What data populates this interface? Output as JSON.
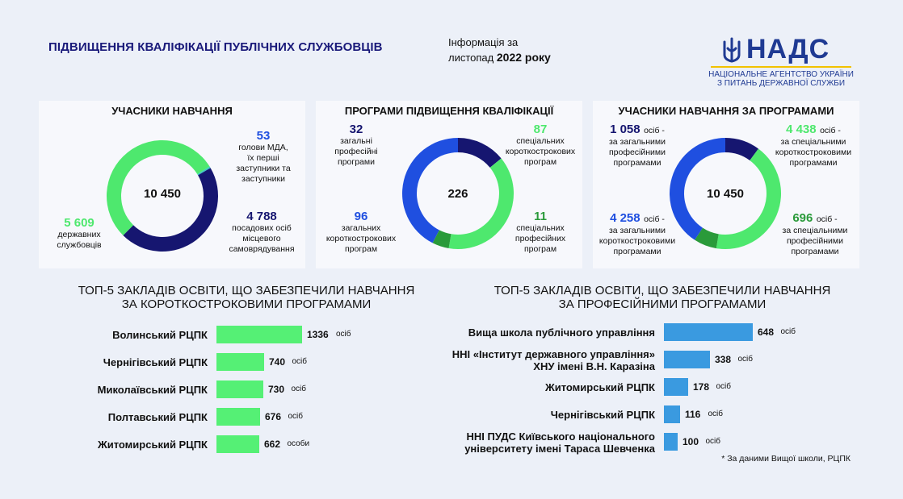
{
  "header": {
    "title": "ПІДВИЩЕННЯ КВАЛІФІКАЦІЇ ПУБЛІЧНИХ СЛУЖБОВЦІВ",
    "info_line1": "Інформація за",
    "info_line2a": "листопад",
    "info_line2b": "2022 року",
    "logo_text": "НАДС",
    "logo_sub1": "НАЦІОНАЛЬНЕ АГЕНТСТВО УКРАЇНИ",
    "logo_sub2": "З ПИТАНЬ ДЕРЖАВНОЇ СЛУЖБИ"
  },
  "colors": {
    "green": "#4ee86e",
    "navy": "#161670",
    "blue": "#1f4fe0",
    "dark_green": "#2a9a3a",
    "teal": "#3ec9c2",
    "bar_green": "#55f075",
    "bar_blue": "#3a9ae0"
  },
  "panel1": {
    "title": "УЧАСНИКИ НАВЧАННЯ",
    "total": "10 450",
    "items": [
      {
        "value": "53",
        "desc": [
          "голови МДА,",
          "їх перші",
          "заступники та",
          "заступники"
        ]
      },
      {
        "value": "4 788",
        "desc": [
          "посадових осіб",
          "місцевого",
          "самоврядування"
        ]
      },
      {
        "value": "5 609",
        "desc": [
          "державних",
          "службовців"
        ]
      }
    ]
  },
  "panel2": {
    "title": "ПРОГРАМИ ПІДВИЩЕННЯ КВАЛІФІКАЦІЇ",
    "total": "226",
    "items": [
      {
        "value": "32",
        "desc": [
          "загальні",
          "професійні",
          "програми"
        ]
      },
      {
        "value": "87",
        "desc": [
          "спеціальних",
          "короткострокових",
          "програм"
        ]
      },
      {
        "value": "96",
        "desc": [
          "загальних",
          "короткострокових",
          "програм"
        ]
      },
      {
        "value": "11",
        "desc": [
          "спеціальних",
          "професійних",
          "програм"
        ]
      }
    ]
  },
  "panel3": {
    "title": "УЧАСНИКИ НАВЧАННЯ ЗА ПРОГРАМАМИ",
    "total": "10 450",
    "unit": "осіб -",
    "items": [
      {
        "value": "1 058",
        "desc": [
          "за загальними",
          "професійними",
          "програмами"
        ]
      },
      {
        "value": "4 438",
        "desc": [
          "за спеціальними",
          "короткостроковими",
          "програмами"
        ]
      },
      {
        "value": "4 258",
        "desc": [
          "за загальними",
          "короткостроковими",
          "програмами"
        ]
      },
      {
        "value": "696",
        "desc": [
          "за спеціальними",
          "професійними",
          "програмами"
        ]
      }
    ]
  },
  "bars_left": {
    "title1": "ТОП-5 ЗАКЛАДІВ ОСВІТИ, ЩО ЗАБЕЗПЕЧИЛИ НАВЧАННЯ",
    "title2": "ЗА КОРОТКОСТРОКОВИМИ ПРОГРАМАМИ",
    "rows": [
      {
        "label": "Волинський РЦПК",
        "value": "1336",
        "unit": "осіб"
      },
      {
        "label": "Чернігівський РЦПК",
        "value": "740",
        "unit": "осіб"
      },
      {
        "label": "Миколаївський РЦПК",
        "value": "730",
        "unit": "осіб"
      },
      {
        "label": "Полтавський РЦПК",
        "value": "676",
        "unit": "осіб"
      },
      {
        "label": "Житомирський РЦПК",
        "value": "662",
        "unit": "особи"
      }
    ]
  },
  "bars_right": {
    "title1": "ТОП-5 ЗАКЛАДІВ ОСВІТИ, ЩО ЗАБЕЗПЕЧИЛИ НАВЧАННЯ",
    "title2": "ЗА ПРОФЕСІЙНИМИ ПРОГРАМАМИ",
    "rows": [
      {
        "label1": "Вища школа публічного управління",
        "label2": "",
        "value": "648",
        "unit": "осіб"
      },
      {
        "label1": "ННІ «Інститут державного управління»",
        "label2": "ХНУ імені В.Н. Каразіна",
        "value": "338",
        "unit": "осіб"
      },
      {
        "label1": "Житомирський РЦПК",
        "label2": "",
        "value": "178",
        "unit": "осіб"
      },
      {
        "label1": "Чернігівський РЦПК",
        "label2": "",
        "value": "116",
        "unit": "осіб"
      },
      {
        "label1": "ННІ ПУДС Київського національного",
        "label2": "університету імені Тараса Шевченка",
        "value": "100",
        "unit": "осіб"
      }
    ]
  },
  "footnote": "* За даними Вищої школи, РЦПК",
  "chart_data": [
    {
      "type": "pie",
      "title": "УЧАСНИКИ НАВЧАННЯ",
      "categories": [
        "голови МДА, їх перші заступники та заступники",
        "посадових осіб місцевого самоврядування",
        "державних службовців"
      ],
      "values": [
        53,
        4788,
        5609
      ],
      "total": 10450
    },
    {
      "type": "pie",
      "title": "ПРОГРАМИ ПІДВИЩЕННЯ КВАЛІФІКАЦІЇ",
      "categories": [
        "загальні професійні програми",
        "спеціальних короткострокових програм",
        "спеціальних професійних програм",
        "загальних короткострокових програм"
      ],
      "values": [
        32,
        87,
        11,
        96
      ],
      "total": 226
    },
    {
      "type": "pie",
      "title": "УЧАСНИКИ НАВЧАННЯ ЗА ПРОГРАМАМИ",
      "categories": [
        "за загальними професійними програмами",
        "за спеціальними короткостроковими програмами",
        "за спеціальними професійними програмами",
        "за загальними короткостроковими програмами"
      ],
      "values": [
        1058,
        4438,
        696,
        4258
      ],
      "total": 10450
    },
    {
      "type": "bar",
      "title": "ТОП-5 ЗАКЛАДІВ ОСВІТИ, ЩО ЗАБЕЗПЕЧИЛИ НАВЧАННЯ ЗА КОРОТКОСТРОКОВИМИ ПРОГРАМАМИ",
      "categories": [
        "Волинський РЦПК",
        "Чернігівський РЦПК",
        "Миколаївський РЦПК",
        "Полтавський РЦПК",
        "Житомирський РЦПК"
      ],
      "values": [
        1336,
        740,
        730,
        676,
        662
      ]
    },
    {
      "type": "bar",
      "title": "ТОП-5 ЗАКЛАДІВ ОСВІТИ, ЩО ЗАБЕЗПЕЧИЛИ НАВЧАННЯ ЗА ПРОФЕСІЙНИМИ ПРОГРАМАМИ",
      "categories": [
        "Вища школа публічного управління",
        "ННІ «Інститут державного управління» ХНУ імені В.Н. Каразіна",
        "Житомирський РЦПК",
        "Чернігівський РЦПК",
        "ННІ ПУДС Київського національного університету імені Тараса Шевченка"
      ],
      "values": [
        648,
        338,
        178,
        116,
        100
      ]
    }
  ]
}
